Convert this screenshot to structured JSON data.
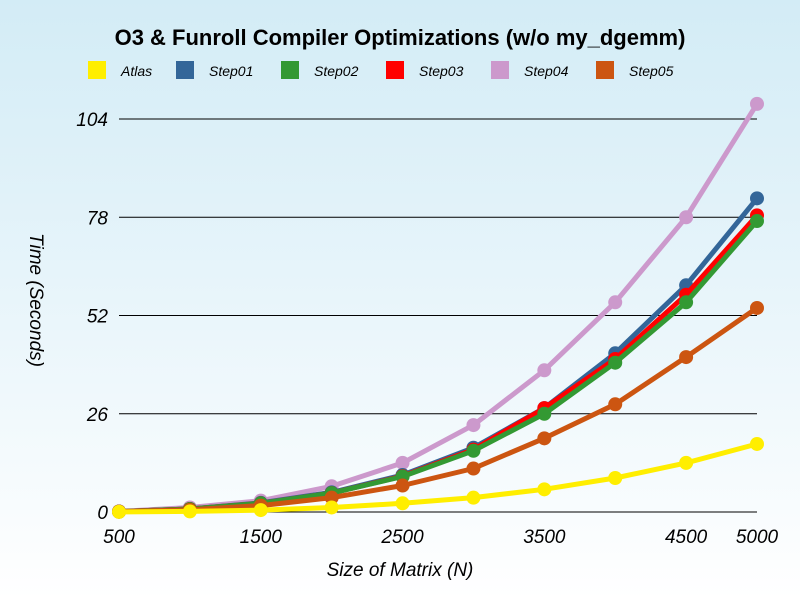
{
  "chart_data": {
    "type": "line",
    "title": "O3 & Funroll Compiler Optimizations (w/o my_dgemm)",
    "xlabel": "Size of Matrix (N)",
    "ylabel": "Time (Seconds)",
    "x": [
      500,
      1000,
      1500,
      2000,
      2500,
      3000,
      3500,
      4000,
      4500,
      5000
    ],
    "x_tick_labels": [
      "500",
      "1500",
      "2500",
      "3500",
      "4500",
      "5000"
    ],
    "x_tick_values": [
      500,
      1500,
      2500,
      3500,
      4500,
      5000
    ],
    "y_tick_labels": [
      "0",
      "26",
      "52",
      "78",
      "104"
    ],
    "y_tick_values": [
      0,
      26,
      52,
      78,
      104
    ],
    "ylim": [
      0,
      104
    ],
    "grid": "horizontal",
    "legend_placement": "top",
    "series": [
      {
        "name": "Atlas",
        "color": "#ffee00",
        "values": [
          0.02,
          0.15,
          0.5,
          1.2,
          2.3,
          3.8,
          6.0,
          9.0,
          13.0,
          18.0
        ]
      },
      {
        "name": "Step01",
        "color": "#336699",
        "values": [
          0.1,
          0.8,
          2.4,
          5.2,
          9.8,
          17.0,
          27.5,
          42.0,
          60.0,
          83.0
        ]
      },
      {
        "name": "Step02",
        "color": "#339933",
        "values": [
          0.1,
          0.8,
          2.3,
          5.0,
          9.4,
          16.2,
          26.0,
          39.5,
          55.5,
          77.0
        ]
      },
      {
        "name": "Step03",
        "color": "#ff0000",
        "values": [
          0.1,
          0.8,
          2.3,
          5.0,
          9.5,
          16.5,
          27.5,
          40.5,
          57.5,
          78.5
        ]
      },
      {
        "name": "Step04",
        "color": "#cc99cc",
        "values": [
          0.15,
          1.2,
          3.0,
          6.8,
          13.0,
          23.0,
          37.5,
          55.5,
          78.0,
          108.0
        ]
      },
      {
        "name": "Step05",
        "color": "#cc5511",
        "values": [
          0.1,
          0.6,
          1.7,
          3.8,
          7.0,
          11.5,
          19.5,
          28.5,
          41.0,
          54.0
        ]
      }
    ]
  }
}
